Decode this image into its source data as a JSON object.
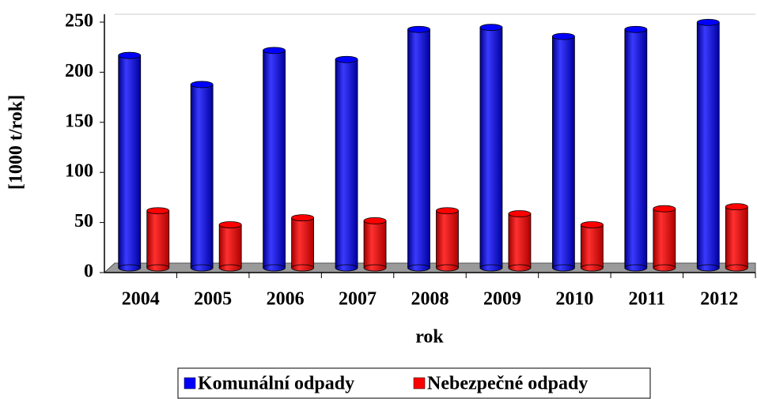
{
  "chart_data": {
    "type": "bar3d",
    "categories": [
      "2004",
      "2005",
      "2006",
      "2007",
      "2008",
      "2009",
      "2010",
      "2011",
      "2012"
    ],
    "series": [
      {
        "name": "Komunální odpady",
        "color": "#0000ff",
        "values": [
          212,
          183,
          217,
          208,
          238,
          240,
          231,
          238,
          245
        ]
      },
      {
        "name": "Nebezpečné odpady",
        "color": "#ff0000",
        "values": [
          57,
          43,
          50,
          47,
          57,
          54,
          43,
          59,
          61
        ]
      }
    ],
    "ylabel": "[1000 t/rok]",
    "xlabel": "rok",
    "ylim": [
      0,
      250
    ],
    "yticks": [
      0,
      50,
      100,
      150,
      200,
      250
    ],
    "grid": false,
    "legend": "bottom"
  }
}
